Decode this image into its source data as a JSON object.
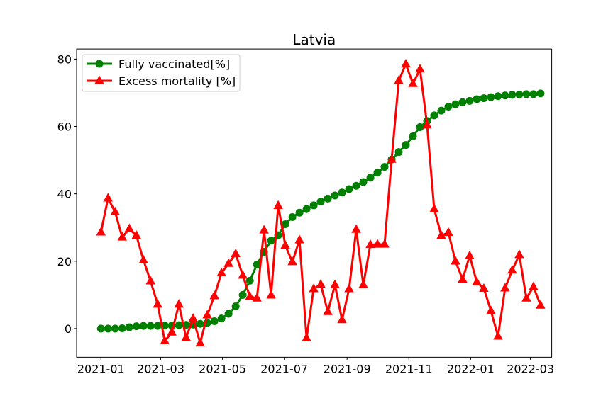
{
  "chart_data": {
    "type": "line",
    "title": "Latvia",
    "xlabel": "",
    "ylabel": "",
    "ylim": [
      -8.5,
      83
    ],
    "yticks": [
      0,
      20,
      40,
      60,
      80
    ],
    "x_ticks": [
      {
        "label": "2021-01",
        "day": 0
      },
      {
        "label": "2021-03",
        "day": 59
      },
      {
        "label": "2021-05",
        "day": 120
      },
      {
        "label": "2021-07",
        "day": 181
      },
      {
        "label": "2021-09",
        "day": 243
      },
      {
        "label": "2021-11",
        "day": 304
      },
      {
        "label": "2022-01",
        "day": 365
      },
      {
        "label": "2022-03",
        "day": 424
      }
    ],
    "x_range_days": [
      -24,
      445
    ],
    "x_step_days": 7,
    "legend_position": "upper-left",
    "series": [
      {
        "name": "Fully vaccinated[%]",
        "color": "#008000",
        "marker": "circle",
        "values": [
          0,
          0,
          0,
          0.1,
          0.4,
          0.7,
          0.8,
          0.8,
          0.8,
          0.9,
          0.9,
          1,
          1.1,
          1.2,
          1.4,
          1.7,
          2.2,
          3,
          4.4,
          6.6,
          10,
          14.2,
          19,
          22.8,
          26.1,
          27.7,
          31,
          33.1,
          34.4,
          35.5,
          36.6,
          37.7,
          38.6,
          39.5,
          40.4,
          41.4,
          42.4,
          43.5,
          44.8,
          46.3,
          48,
          50.2,
          52.4,
          54.5,
          57.1,
          59.8,
          61.6,
          63.3,
          64.7,
          65.9,
          66.6,
          67.2,
          67.6,
          68.1,
          68.4,
          68.7,
          69,
          69.2,
          69.4,
          69.5,
          69.6,
          69.6,
          69.8
        ]
      },
      {
        "name": "Excess mortality [%]",
        "color": "#ff0000",
        "marker": "triangle",
        "values": [
          28.6,
          38.7,
          34.6,
          27.1,
          29.6,
          27.6,
          20.3,
          14.1,
          7.2,
          -3.7,
          -1.1,
          7.2,
          -2.7,
          3,
          -4.3,
          4,
          9.7,
          16.5,
          19.3,
          22.2,
          15.8,
          9.5,
          9,
          29.2,
          9.9,
          36.5,
          24.7,
          19.8,
          26.3,
          -2.8,
          11.8,
          13.1,
          5,
          13,
          2.6,
          11.8,
          29.4,
          13,
          24.9,
          25,
          25,
          50.2,
          73.6,
          78.5,
          72.7,
          77,
          60.4,
          35.5,
          27.6,
          28.5,
          20,
          14.6,
          21.6,
          13.8,
          11.9,
          5.3,
          -2.3,
          12,
          17.3,
          21.9,
          9,
          12.4,
          6.9
        ]
      }
    ]
  }
}
